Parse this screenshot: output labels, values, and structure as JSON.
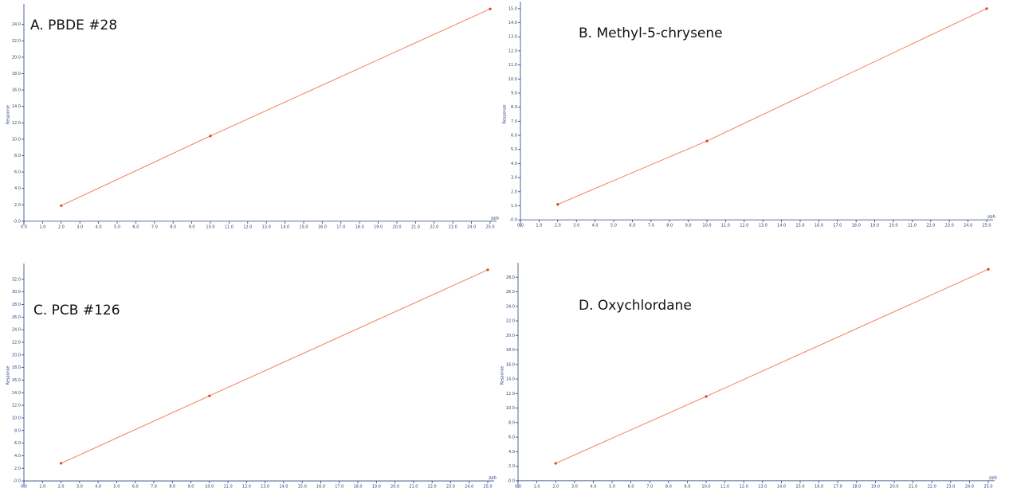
{
  "chart_data": [
    {
      "type": "line",
      "title": "A. PBDE #28",
      "x_label": "ppb",
      "y_label": "Response",
      "series": [
        {
          "name": "PBDE #28",
          "color": "#f0805a",
          "x": [
            2,
            10,
            25
          ],
          "values": [
            1.9,
            10.4,
            25.9
          ]
        }
      ],
      "xlim": [
        0,
        25
      ],
      "ylim": [
        -0.5,
        26.5
      ],
      "xticks": [
        {
          "value": 0,
          "label": "0.0"
        },
        {
          "value": 1,
          "label": "1.0"
        },
        {
          "value": 2,
          "label": "2.0"
        },
        {
          "value": 3,
          "label": "3.0"
        },
        {
          "value": 4,
          "label": "4.0"
        },
        {
          "value": 5,
          "label": "5.0"
        },
        {
          "value": 6,
          "label": "6.0"
        },
        {
          "value": 7,
          "label": "7.0"
        },
        {
          "value": 8,
          "label": "8.0"
        },
        {
          "value": 9,
          "label": "9.0"
        },
        {
          "value": 10,
          "label": "10.0"
        },
        {
          "value": 11,
          "label": "11.0"
        },
        {
          "value": 12,
          "label": "12.0"
        },
        {
          "value": 13,
          "label": "13.0"
        },
        {
          "value": 14,
          "label": "14.0"
        },
        {
          "value": 15,
          "label": "15.0"
        },
        {
          "value": 16,
          "label": "16.0"
        },
        {
          "value": 17,
          "label": "17.0"
        },
        {
          "value": 18,
          "label": "18.0"
        },
        {
          "value": 19,
          "label": "19.0"
        },
        {
          "value": 20,
          "label": "20.0"
        },
        {
          "value": 21,
          "label": "21.0"
        },
        {
          "value": 22,
          "label": "22.0"
        },
        {
          "value": 23,
          "label": "23.0"
        },
        {
          "value": 24,
          "label": "24.0"
        },
        {
          "value": 25,
          "label": "25.0"
        }
      ],
      "yticks": [
        {
          "value": 0,
          "label": "-0.0"
        },
        {
          "value": 2,
          "label": "2.0"
        },
        {
          "value": 4,
          "label": "4.0"
        },
        {
          "value": 6,
          "label": "6.0"
        },
        {
          "value": 8,
          "label": "8.0"
        },
        {
          "value": 10,
          "label": "10.0"
        },
        {
          "value": 12,
          "label": "12.0"
        },
        {
          "value": 14,
          "label": "14.0"
        },
        {
          "value": 16,
          "label": "16.0"
        },
        {
          "value": 18,
          "label": "18.0"
        },
        {
          "value": 20,
          "label": "20.0"
        },
        {
          "value": 22,
          "label": "22.0"
        },
        {
          "value": 24,
          "label": "24.0"
        }
      ]
    },
    {
      "type": "line",
      "title": "B. Methyl-5-chrysene",
      "x_label": "ppb",
      "y_label": "Response",
      "series": [
        {
          "name": "Methyl-5-chrysene",
          "color": "#f0805a",
          "x": [
            2,
            10,
            25
          ],
          "values": [
            1.1,
            5.6,
            15.0
          ]
        }
      ],
      "xlim": [
        0,
        25
      ],
      "ylim": [
        -0.5,
        15.5
      ],
      "xticks": [
        {
          "value": 0,
          "label": "0.0"
        },
        {
          "value": 1,
          "label": "1.0"
        },
        {
          "value": 2,
          "label": "2.0"
        },
        {
          "value": 3,
          "label": "3.0"
        },
        {
          "value": 4,
          "label": "4.0"
        },
        {
          "value": 5,
          "label": "5.0"
        },
        {
          "value": 6,
          "label": "6.0"
        },
        {
          "value": 7,
          "label": "7.0"
        },
        {
          "value": 8,
          "label": "8.0"
        },
        {
          "value": 9,
          "label": "9.0"
        },
        {
          "value": 10,
          "label": "10.0"
        },
        {
          "value": 11,
          "label": "11.0"
        },
        {
          "value": 12,
          "label": "12.0"
        },
        {
          "value": 13,
          "label": "13.0"
        },
        {
          "value": 14,
          "label": "14.0"
        },
        {
          "value": 15,
          "label": "15.0"
        },
        {
          "value": 16,
          "label": "16.0"
        },
        {
          "value": 17,
          "label": "17.0"
        },
        {
          "value": 18,
          "label": "18.0"
        },
        {
          "value": 19,
          "label": "19.0"
        },
        {
          "value": 20,
          "label": "20.0"
        },
        {
          "value": 21,
          "label": "21.0"
        },
        {
          "value": 22,
          "label": "22.0"
        },
        {
          "value": 23,
          "label": "23.0"
        },
        {
          "value": 24,
          "label": "24.0"
        },
        {
          "value": 25,
          "label": "25.0"
        }
      ],
      "yticks": [
        {
          "value": 0,
          "label": "-0.0"
        },
        {
          "value": 1,
          "label": "1.0"
        },
        {
          "value": 2,
          "label": "2.0"
        },
        {
          "value": 3,
          "label": "3.0"
        },
        {
          "value": 4,
          "label": "4.0"
        },
        {
          "value": 5,
          "label": "5.0"
        },
        {
          "value": 6,
          "label": "6.0"
        },
        {
          "value": 7,
          "label": "7.0"
        },
        {
          "value": 8,
          "label": "8.0"
        },
        {
          "value": 9,
          "label": "9.0"
        },
        {
          "value": 10,
          "label": "10.0"
        },
        {
          "value": 11,
          "label": "11.0"
        },
        {
          "value": 12,
          "label": "12.0"
        },
        {
          "value": 13,
          "label": "13.0"
        },
        {
          "value": 14,
          "label": "14.0"
        },
        {
          "value": 15,
          "label": "15.0"
        }
      ]
    },
    {
      "type": "line",
      "title": "C. PCB #126",
      "x_label": "ppb",
      "y_label": "Response",
      "series": [
        {
          "name": "PCB #126",
          "color": "#f0805a",
          "x": [
            2,
            10,
            25
          ],
          "values": [
            2.8,
            13.5,
            33.5
          ]
        }
      ],
      "xlim": [
        0,
        25
      ],
      "ylim": [
        -1,
        34.5
      ],
      "xticks": [
        {
          "value": 0,
          "label": "0.0"
        },
        {
          "value": 1,
          "label": "1.0"
        },
        {
          "value": 2,
          "label": "2.0"
        },
        {
          "value": 3,
          "label": "3.0"
        },
        {
          "value": 4,
          "label": "4.0"
        },
        {
          "value": 5,
          "label": "5.0"
        },
        {
          "value": 6,
          "label": "6.0"
        },
        {
          "value": 7,
          "label": "7.0"
        },
        {
          "value": 8,
          "label": "8.0"
        },
        {
          "value": 9,
          "label": "9.0"
        },
        {
          "value": 10,
          "label": "10.0"
        },
        {
          "value": 11,
          "label": "11.0"
        },
        {
          "value": 12,
          "label": "12.0"
        },
        {
          "value": 13,
          "label": "13.0"
        },
        {
          "value": 14,
          "label": "14.0"
        },
        {
          "value": 15,
          "label": "15.0"
        },
        {
          "value": 16,
          "label": "16.0"
        },
        {
          "value": 17,
          "label": "17.0"
        },
        {
          "value": 18,
          "label": "18.0"
        },
        {
          "value": 19,
          "label": "19.0"
        },
        {
          "value": 20,
          "label": "20.0"
        },
        {
          "value": 21,
          "label": "21.0"
        },
        {
          "value": 22,
          "label": "22.0"
        },
        {
          "value": 23,
          "label": "23.0"
        },
        {
          "value": 24,
          "label": "24.0"
        },
        {
          "value": 25,
          "label": "25.0"
        }
      ],
      "yticks": [
        {
          "value": 0,
          "label": "-0.0"
        },
        {
          "value": 2,
          "label": "2.0"
        },
        {
          "value": 4,
          "label": "4.0"
        },
        {
          "value": 6,
          "label": "6.0"
        },
        {
          "value": 8,
          "label": "8.0"
        },
        {
          "value": 10,
          "label": "10.0"
        },
        {
          "value": 12,
          "label": "12.0"
        },
        {
          "value": 14,
          "label": "14.0"
        },
        {
          "value": 16,
          "label": "16.0"
        },
        {
          "value": 18,
          "label": "18.0"
        },
        {
          "value": 20,
          "label": "20.0"
        },
        {
          "value": 22,
          "label": "22.0"
        },
        {
          "value": 24,
          "label": "24.0"
        },
        {
          "value": 26,
          "label": "26.0"
        },
        {
          "value": 28,
          "label": "28.0"
        },
        {
          "value": 30,
          "label": "30.0"
        },
        {
          "value": 32,
          "label": "32.0"
        }
      ]
    },
    {
      "type": "line",
      "title": "D. Oxychlordane",
      "x_label": "ppb",
      "y_label": "Response",
      "series": [
        {
          "name": "Oxychlordane",
          "color": "#f0805a",
          "x": [
            2,
            10,
            25
          ],
          "values": [
            2.4,
            11.6,
            29.1
          ]
        }
      ],
      "xlim": [
        0,
        25
      ],
      "ylim": [
        -1,
        30
      ],
      "xticks": [
        {
          "value": 0,
          "label": "0.0"
        },
        {
          "value": 1,
          "label": "1.0"
        },
        {
          "value": 2,
          "label": "2.0"
        },
        {
          "value": 3,
          "label": "3.0"
        },
        {
          "value": 4,
          "label": "4.0"
        },
        {
          "value": 5,
          "label": "5.0"
        },
        {
          "value": 6,
          "label": "6.0"
        },
        {
          "value": 7,
          "label": "7.0"
        },
        {
          "value": 8,
          "label": "8.0"
        },
        {
          "value": 9,
          "label": "9.0"
        },
        {
          "value": 10,
          "label": "10.0"
        },
        {
          "value": 11,
          "label": "11.0"
        },
        {
          "value": 12,
          "label": "12.0"
        },
        {
          "value": 13,
          "label": "13.0"
        },
        {
          "value": 14,
          "label": "14.0"
        },
        {
          "value": 15,
          "label": "15.0"
        },
        {
          "value": 16,
          "label": "16.0"
        },
        {
          "value": 17,
          "label": "17.0"
        },
        {
          "value": 18,
          "label": "18.0"
        },
        {
          "value": 19,
          "label": "19.0"
        },
        {
          "value": 20,
          "label": "20.0"
        },
        {
          "value": 21,
          "label": "21.0"
        },
        {
          "value": 22,
          "label": "22.0"
        },
        {
          "value": 23,
          "label": "23.0"
        },
        {
          "value": 24,
          "label": "24.0"
        },
        {
          "value": 25,
          "label": "25.0"
        }
      ],
      "yticks": [
        {
          "value": 0,
          "label": "-0.0"
        },
        {
          "value": 2,
          "label": "2.0"
        },
        {
          "value": 4,
          "label": "4.0"
        },
        {
          "value": 6,
          "label": "6.0"
        },
        {
          "value": 8,
          "label": "8.0"
        },
        {
          "value": 10,
          "label": "10.0"
        },
        {
          "value": 12,
          "label": "12.0"
        },
        {
          "value": 14,
          "label": "14.0"
        },
        {
          "value": 16,
          "label": "16.0"
        },
        {
          "value": 18,
          "label": "18.0"
        },
        {
          "value": 20,
          "label": "20.0"
        },
        {
          "value": 22,
          "label": "22.0"
        },
        {
          "value": 24,
          "label": "24.0"
        },
        {
          "value": 26,
          "label": "26.0"
        },
        {
          "value": 28,
          "label": "28.0"
        }
      ]
    }
  ]
}
